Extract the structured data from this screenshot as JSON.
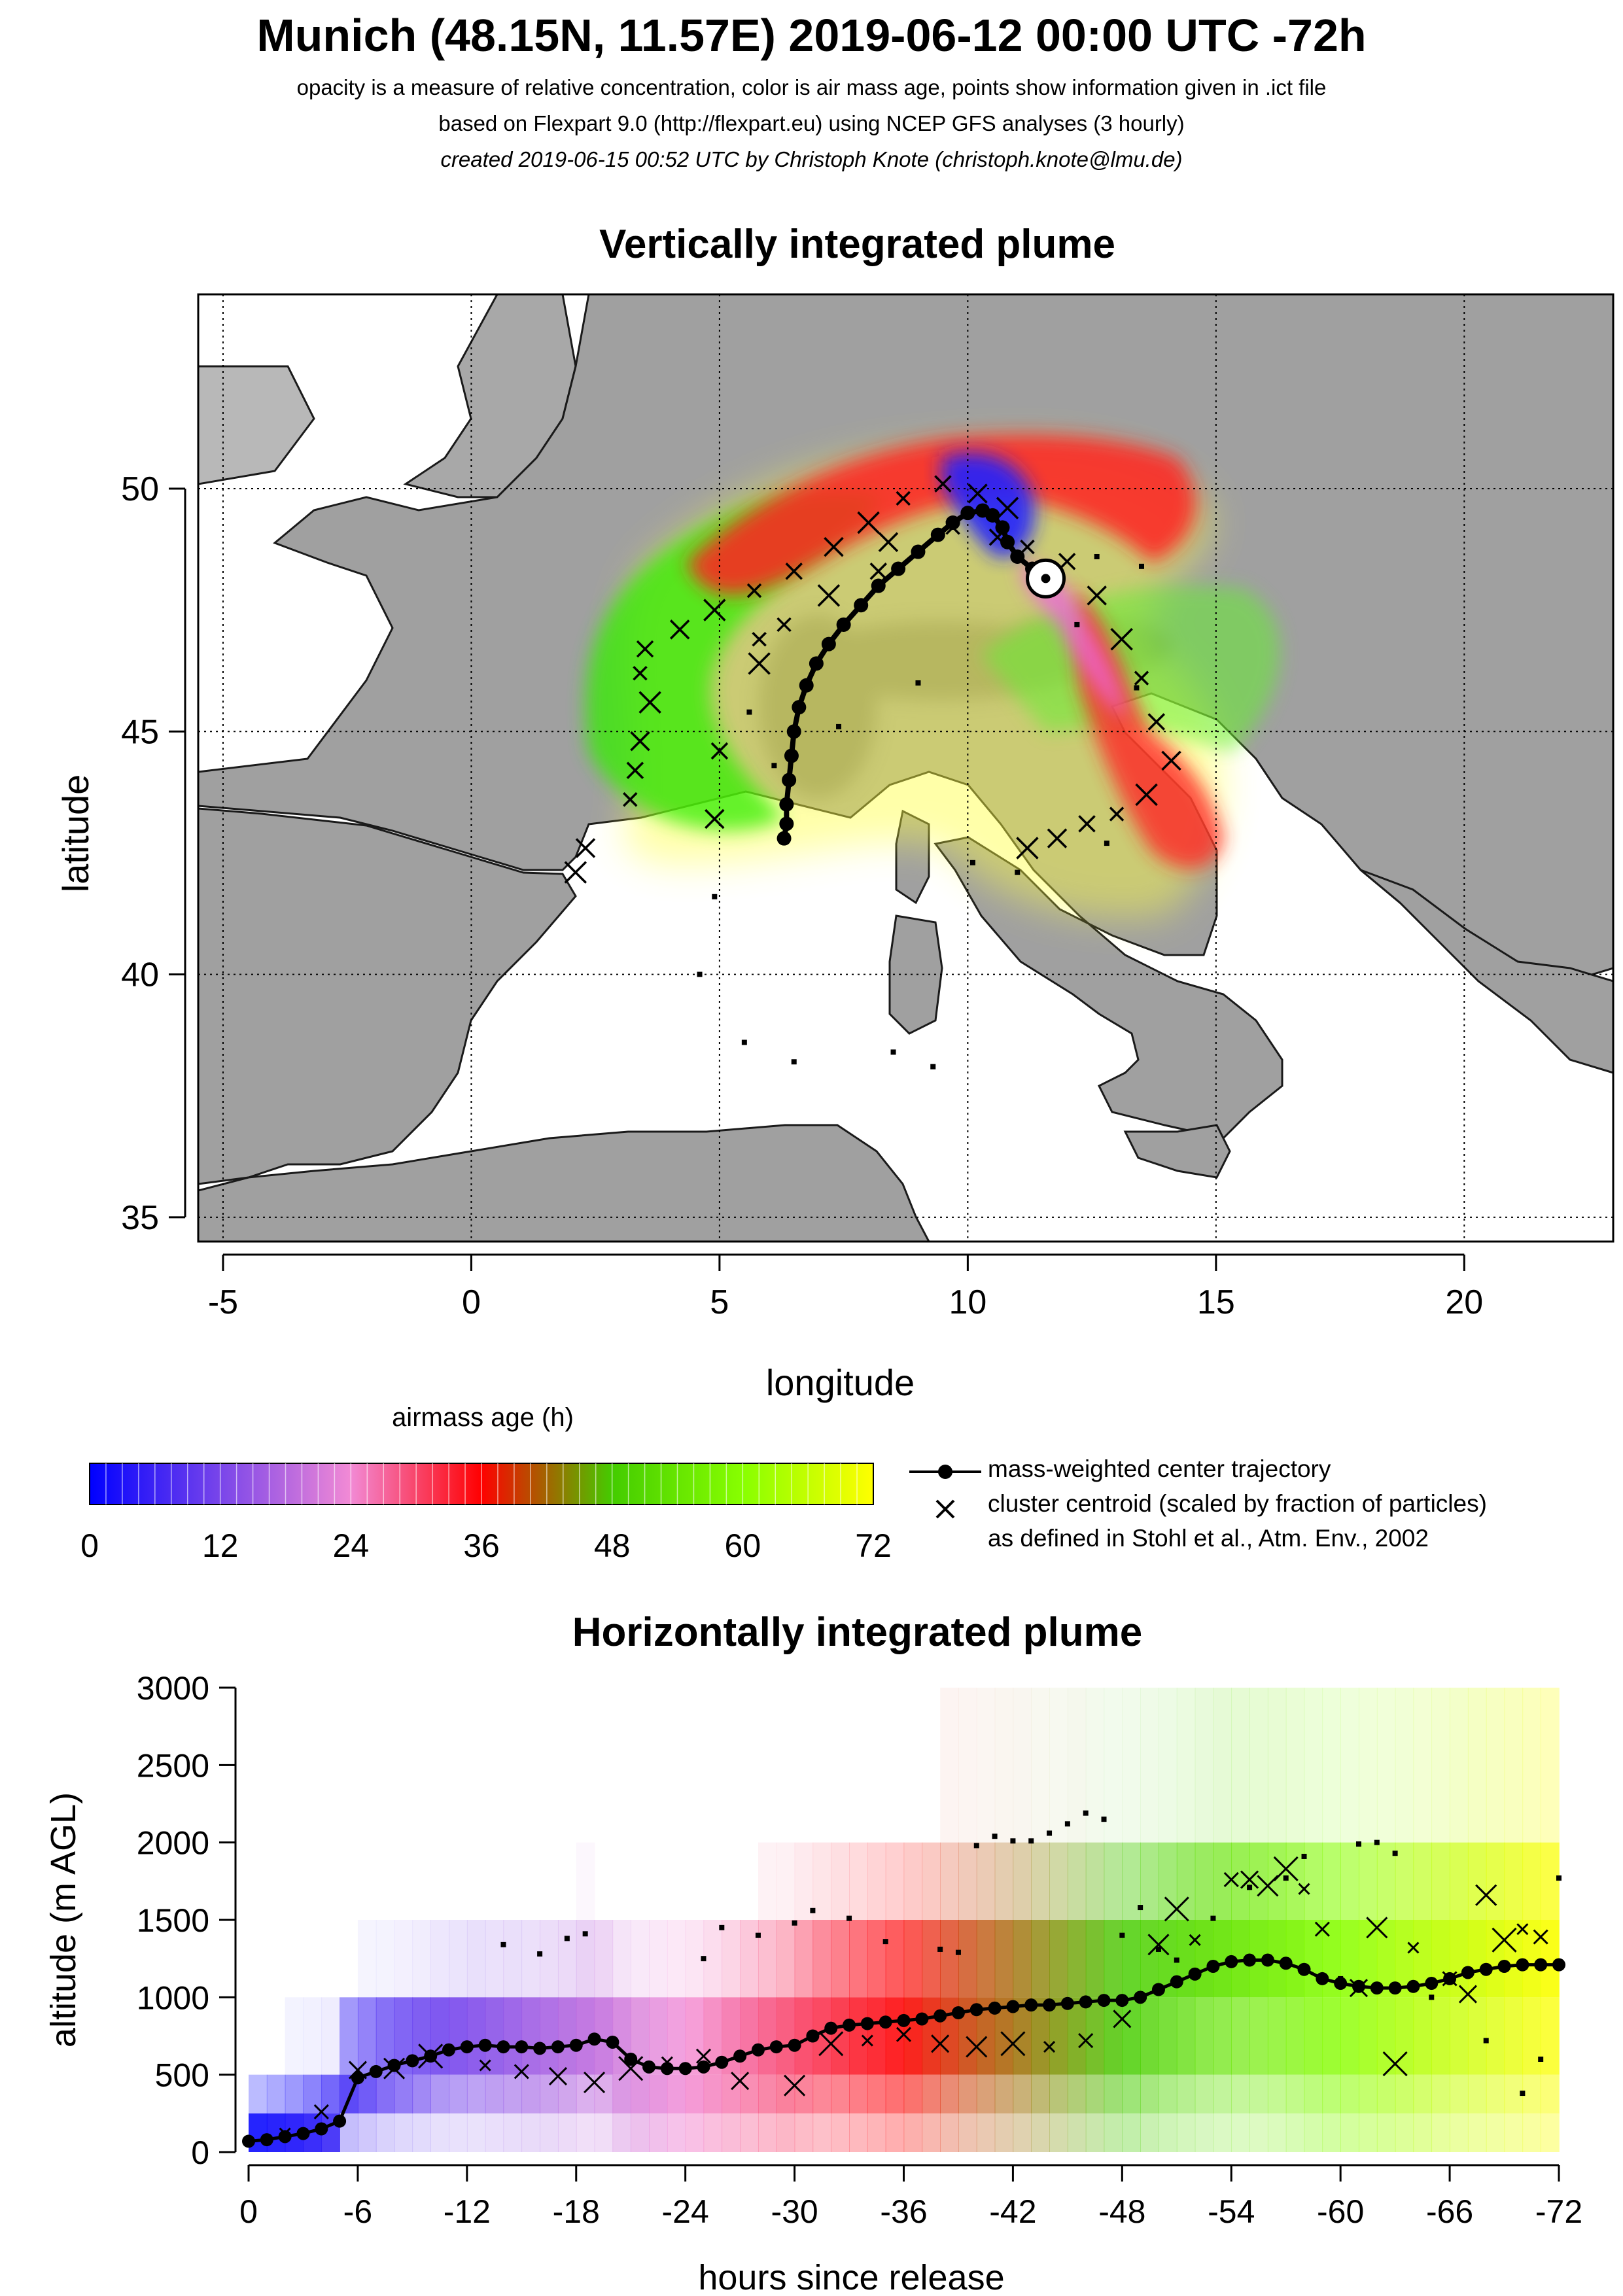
{
  "header": {
    "title": "Munich (48.15N, 11.57E) 2019-06-12 00:00 UTC -72h",
    "line1": "opacity is a measure of relative concentration, color is air mass age, points show information given in .ict file",
    "line2": "based on Flexpart 9.0 (http://flexpart.eu) using NCEP GFS analyses (3 hourly)",
    "line3": "created 2019-06-15 00:52 UTC by Christoph Knote (christoph.knote@lmu.de)"
  },
  "colors": {
    "age_0": "#0000ff",
    "age_24": "#f28ad5",
    "age_36": "#ff0000",
    "age_48": "#44cc00",
    "age_60": "#88ff00",
    "age_72": "#ffff00",
    "land": "#9a9a9a",
    "sea": "#ffffff"
  },
  "chart_data": [
    {
      "type": "scatter",
      "title": "Vertically integrated plume",
      "xlabel": "longitude",
      "ylabel": "latitude",
      "xlim": [
        -5.5,
        23
      ],
      "ylim": [
        34.5,
        54
      ],
      "xticks": [
        -5,
        0,
        5,
        10,
        15,
        20
      ],
      "yticks": [
        35,
        40,
        45,
        50
      ],
      "grid": true,
      "release_point": {
        "lon": 11.57,
        "lat": 48.15
      },
      "series": [
        {
          "name": "mass-weighted center trajectory",
          "points": [
            [
              11.57,
              48.15
            ],
            [
              11.3,
              48.35
            ],
            [
              11.0,
              48.6
            ],
            [
              10.8,
              48.9
            ],
            [
              10.7,
              49.2
            ],
            [
              10.5,
              49.45
            ],
            [
              10.3,
              49.55
            ],
            [
              10.0,
              49.5
            ],
            [
              9.7,
              49.3
            ],
            [
              9.4,
              49.05
            ],
            [
              9.0,
              48.7
            ],
            [
              8.6,
              48.35
            ],
            [
              8.2,
              48.0
            ],
            [
              7.85,
              47.6
            ],
            [
              7.5,
              47.2
            ],
            [
              7.2,
              46.8
            ],
            [
              6.95,
              46.4
            ],
            [
              6.75,
              45.95
            ],
            [
              6.6,
              45.5
            ],
            [
              6.5,
              45.0
            ],
            [
              6.45,
              44.5
            ],
            [
              6.4,
              44.0
            ],
            [
              6.35,
              43.5
            ],
            [
              6.35,
              43.1
            ],
            [
              6.3,
              42.8
            ]
          ]
        },
        {
          "name": "cluster centroid (scaled by fraction of particles)",
          "points": [
            [
              3.2,
              43.6
            ],
            [
              3.3,
              44.2
            ],
            [
              3.4,
              44.8
            ],
            [
              3.6,
              45.6
            ],
            [
              3.4,
              46.2
            ],
            [
              3.5,
              46.7
            ],
            [
              4.2,
              47.1
            ],
            [
              4.9,
              47.5
            ],
            [
              5.7,
              47.9
            ],
            [
              6.5,
              48.3
            ],
            [
              7.3,
              48.8
            ],
            [
              8.0,
              49.3
            ],
            [
              8.7,
              49.8
            ],
            [
              9.5,
              50.1
            ],
            [
              10.2,
              49.9
            ],
            [
              10.8,
              49.6
            ],
            [
              11.2,
              48.8
            ],
            [
              10.6,
              49.0
            ],
            [
              8.4,
              48.9
            ],
            [
              7.2,
              47.8
            ],
            [
              5.8,
              46.9
            ],
            [
              5.0,
              44.6
            ],
            [
              4.9,
              43.2
            ],
            [
              5.8,
              46.4
            ],
            [
              6.3,
              47.2
            ],
            [
              12.0,
              48.5
            ],
            [
              12.6,
              47.8
            ],
            [
              13.1,
              46.9
            ],
            [
              13.5,
              46.1
            ],
            [
              13.8,
              45.2
            ],
            [
              14.1,
              44.4
            ],
            [
              13.6,
              43.7
            ],
            [
              13.0,
              43.3
            ],
            [
              12.4,
              43.1
            ],
            [
              11.8,
              42.8
            ],
            [
              11.2,
              42.6
            ],
            [
              9.7,
              49.2
            ],
            [
              8.2,
              48.3
            ],
            [
              2.3,
              42.6
            ],
            [
              2.1,
              42.1
            ]
          ]
        },
        {
          "name": "particle position points",
          "points": [
            [
              4.6,
              40.0
            ],
            [
              5.5,
              38.6
            ],
            [
              6.5,
              38.2
            ],
            [
              8.5,
              38.4
            ],
            [
              9.3,
              38.1
            ],
            [
              10.1,
              42.3
            ],
            [
              12.2,
              47.2
            ],
            [
              12.6,
              48.6
            ],
            [
              5.6,
              45.4
            ],
            [
              7.4,
              45.1
            ],
            [
              13.4,
              45.9
            ],
            [
              6.1,
              44.3
            ],
            [
              9.0,
              46.0
            ],
            [
              4.9,
              41.6
            ],
            [
              12.8,
              42.7
            ],
            [
              11.0,
              42.1
            ],
            [
              13.5,
              48.4
            ]
          ]
        }
      ]
    },
    {
      "type": "scatter",
      "title": "Horizontally integrated plume",
      "xlabel": "hours since release",
      "ylabel": "altitude (m AGL)",
      "xlim": [
        0,
        -72
      ],
      "ylim": [
        0,
        3000
      ],
      "xticks": [
        "0",
        "-6",
        "-12",
        "-18",
        "-24",
        "-30",
        "-36",
        "-42",
        "-48",
        "-54",
        "-60",
        "-66",
        "-72"
      ],
      "yticks": [
        "0",
        "500",
        "1000",
        "1500",
        "2000",
        "2500",
        "3000"
      ],
      "grid": false,
      "series": [
        {
          "name": "mass-weighted center trajectory",
          "x": [
            0,
            -1,
            -2,
            -3,
            -4,
            -5,
            -6,
            -7,
            -8,
            -9,
            -10,
            -11,
            -12,
            -13,
            -14,
            -15,
            -16,
            -17,
            -18,
            -19,
            -20,
            -21,
            -22,
            -23,
            -24,
            -25,
            -26,
            -27,
            -28,
            -29,
            -30,
            -31,
            -32,
            -33,
            -34,
            -35,
            -36,
            -37,
            -38,
            -39,
            -40,
            -41,
            -42,
            -43,
            -44,
            -45,
            -46,
            -47,
            -48,
            -49,
            -50,
            -51,
            -52,
            -53,
            -54,
            -55,
            -56,
            -57,
            -58,
            -59,
            -60,
            -61,
            -62,
            -63,
            -64,
            -65,
            -66,
            -67,
            -68,
            -69,
            -70,
            -71,
            -72
          ],
          "y": [
            70,
            80,
            100,
            120,
            150,
            200,
            480,
            520,
            560,
            590,
            620,
            660,
            680,
            690,
            680,
            680,
            670,
            680,
            690,
            730,
            710,
            600,
            550,
            540,
            540,
            550,
            580,
            620,
            660,
            680,
            690,
            750,
            800,
            820,
            830,
            840,
            850,
            860,
            880,
            900,
            920,
            930,
            940,
            950,
            950,
            960,
            970,
            980,
            980,
            1000,
            1050,
            1100,
            1150,
            1200,
            1230,
            1240,
            1240,
            1220,
            1180,
            1120,
            1090,
            1070,
            1060,
            1060,
            1070,
            1090,
            1120,
            1160,
            1180,
            1200,
            1210,
            1210,
            1210
          ]
        },
        {
          "name": "cluster centroid (scaled by fraction of particles)",
          "x": [
            -2,
            -4,
            -6,
            -8,
            -10,
            -13,
            -15,
            -17,
            -19,
            -21,
            -23,
            -25,
            -27,
            -30,
            -32,
            -34,
            -36,
            -38,
            -40,
            -42,
            -44,
            -46,
            -48,
            -50,
            -51,
            -52,
            -54,
            -55,
            -56,
            -57,
            -58,
            -59,
            -61,
            -62,
            -63,
            -64,
            -66,
            -67,
            -68,
            -69,
            -70,
            -71
          ],
          "y": [
            120,
            260,
            530,
            540,
            620,
            560,
            520,
            490,
            450,
            540,
            580,
            620,
            460,
            430,
            700,
            720,
            760,
            700,
            680,
            700,
            680,
            720,
            860,
            1340,
            1570,
            1370,
            1760,
            1760,
            1720,
            1830,
            1700,
            1440,
            1060,
            1450,
            570,
            1320,
            1120,
            1020,
            1660,
            1370,
            1440,
            1390
          ]
        },
        {
          "name": "particle position points",
          "x": [
            -14,
            -16,
            -17.5,
            -18.5,
            -25,
            -26,
            -28,
            -30,
            -31,
            -33,
            -35,
            -38,
            -39,
            -40,
            -41,
            -42,
            -43,
            -44,
            -45,
            -46,
            -47,
            -48,
            -49,
            -50,
            -51,
            -53,
            -55,
            -57,
            -58,
            -60,
            -61,
            -62,
            -63,
            -64,
            -65,
            -68,
            -70,
            -71,
            -72
          ],
          "y": [
            1340,
            1280,
            1380,
            1410,
            1250,
            1450,
            1400,
            1480,
            1560,
            1510,
            1360,
            1310,
            1290,
            1980,
            2040,
            2010,
            2010,
            2060,
            2120,
            2190,
            2150,
            1400,
            1580,
            1310,
            1240,
            1510,
            1710,
            1770,
            1910,
            1120,
            1990,
            2000,
            1930,
            1050,
            1000,
            720,
            380,
            600,
            1770
          ]
        }
      ]
    }
  ],
  "colorbar": {
    "title": "airmass age (h)",
    "ticks": [
      "0",
      "12",
      "24",
      "36",
      "48",
      "60",
      "72"
    ]
  },
  "legend": {
    "item1": "mass-weighted center trajectory",
    "item2": "cluster centroid (scaled by fraction of particles)",
    "item3": "as defined in Stohl et al., Atm. Env., 2002"
  }
}
